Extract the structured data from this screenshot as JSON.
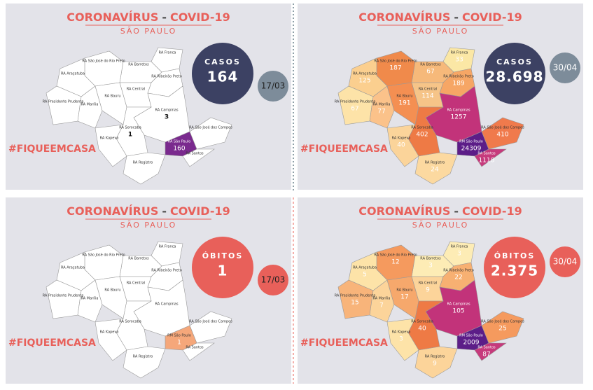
{
  "panels": [
    {
      "title_main": "CORONAVÍRUS",
      "title_sep": "-",
      "title_strong": "COVID-19",
      "subtitle": "SÃO PAULO",
      "badge_label": "CASOS",
      "badge_value": "164",
      "badge_color": "#3c4163",
      "date": "17/03",
      "date_color": "#7d8c9a",
      "hashtag": "#FIQUEEMCASA",
      "regions": [
        {
          "label": "RA Franca",
          "color": "#ffffff"
        },
        {
          "label": "RA Barretos",
          "color": "#ffffff"
        },
        {
          "label": "RA São José do Rio Preto",
          "color": "#ffffff"
        },
        {
          "label": "RA Ribeirão Preto",
          "color": "#ffffff"
        },
        {
          "label": "RA Araçatuba",
          "color": "#ffffff"
        },
        {
          "label": "RA Central",
          "color": "#ffffff"
        },
        {
          "label": "RA Presidente Prudente",
          "color": "#ffffff"
        },
        {
          "label": "RA Marília",
          "color": "#ffffff"
        },
        {
          "label": "RA Bauru",
          "color": "#ffffff"
        },
        {
          "label": "RA Campinas",
          "value": "3",
          "color": "#ffffff"
        },
        {
          "label": "RA São José dos Campos",
          "color": "#ffffff"
        },
        {
          "label": "RA Sorocaba",
          "value": "1",
          "color": "#ffffff"
        },
        {
          "label": "RA Kapeva",
          "color": "#ffffff"
        },
        {
          "label": "RA São Paulo",
          "value": "160",
          "color": "#7a2a8e"
        },
        {
          "label": "RA Santos",
          "color": "#ffffff"
        },
        {
          "label": "RA Registro",
          "color": "#ffffff"
        }
      ]
    },
    {
      "title_main": "CORONAVÍRUS",
      "title_sep": "-",
      "title_strong": "COVID-19",
      "subtitle": "SÃO PAULO",
      "badge_label": "CASOS",
      "badge_value": "28.698",
      "badge_color": "#3c4163",
      "date": "30/04",
      "date_color": "#7d8c9a",
      "hashtag": "#FIQUEEMCASA",
      "regions": [
        {
          "label": "RA Franca",
          "value": "33",
          "color": "#fbe7a5"
        },
        {
          "label": "RA Barretos",
          "value": "67",
          "color": "#f6b97a"
        },
        {
          "label": "RA São José do Rio Preto",
          "value": "187",
          "color": "#f08a4b"
        },
        {
          "label": "RA Ribeirão Preto",
          "value": "189",
          "color": "#f6a665"
        },
        {
          "label": "RA Araçatuba",
          "value": "125",
          "color": "#fbcf8f"
        },
        {
          "label": "RA Central",
          "value": "114",
          "color": "#f6c488"
        },
        {
          "label": "RA Presidente Prudente",
          "value": "67",
          "color": "#fde3a8"
        },
        {
          "label": "RA Marília",
          "value": "77",
          "color": "#fbc28a"
        },
        {
          "label": "RA Bauru",
          "value": "191",
          "color": "#f48f52"
        },
        {
          "label": "RA Campinas",
          "value": "1257",
          "color": "#c2337a"
        },
        {
          "label": "RA São José dos Campos",
          "value": "410",
          "color": "#f07a4c"
        },
        {
          "label": "RA Sorocaba",
          "value": "402",
          "color": "#ee7a45"
        },
        {
          "label": "RA Kapeva",
          "value": "40",
          "color": "#fbd49a"
        },
        {
          "label": "RM São Paulo",
          "value": "24309",
          "color": "#5c1d88"
        },
        {
          "label": "RA Santos",
          "value": "1118",
          "color": "#c63a7c"
        },
        {
          "label": "RA Registro",
          "value": "24",
          "color": "#fcd9a0"
        }
      ]
    },
    {
      "title_main": "CORONAVÍRUS",
      "title_sep": "-",
      "title_strong": "COVID-19",
      "subtitle": "SÃO PAULO",
      "badge_label": "ÓBITOS",
      "badge_value": "1",
      "badge_color": "#e8605a",
      "date": "17/03",
      "date_color": "#e8605a",
      "hashtag": "#FIQUEEMCASA",
      "regions": [
        {
          "label": "RA Franca",
          "color": "#ffffff"
        },
        {
          "label": "RA Barretos",
          "color": "#ffffff"
        },
        {
          "label": "RA São José do Rio Preto",
          "color": "#ffffff"
        },
        {
          "label": "RA Ribeirão Preto",
          "color": "#ffffff"
        },
        {
          "label": "RA Araçatuba",
          "color": "#ffffff"
        },
        {
          "label": "RA Central",
          "color": "#ffffff"
        },
        {
          "label": "RA Presidente Prudente",
          "color": "#ffffff"
        },
        {
          "label": "RA Marília",
          "color": "#ffffff"
        },
        {
          "label": "RA Bauru",
          "color": "#ffffff"
        },
        {
          "label": "RA Campinas",
          "color": "#ffffff"
        },
        {
          "label": "RA São José dos Campos",
          "color": "#ffffff"
        },
        {
          "label": "RA Sorocaba",
          "color": "#ffffff"
        },
        {
          "label": "RA Kapeva",
          "color": "#ffffff"
        },
        {
          "label": "RM São Paulo",
          "value": "1",
          "color": "#f5a77a"
        },
        {
          "label": "RA Santos",
          "color": "#ffffff"
        },
        {
          "label": "RA Registro",
          "color": "#ffffff"
        }
      ]
    },
    {
      "title_main": "CORONAVÍRUS",
      "title_sep": "-",
      "title_strong": "COVID-19",
      "subtitle": "SÃO PAULO",
      "badge_label": "ÓBITOS",
      "badge_value": "2.375",
      "badge_color": "#e8605a",
      "date": "30/04",
      "date_color": "#e8605a",
      "hashtag": "#FIQUEEMCASA",
      "regions": [
        {
          "label": "RA Franca",
          "value": "3",
          "color": "#fdecb5"
        },
        {
          "label": "RA Barretos",
          "value": "3",
          "color": "#fdecb5"
        },
        {
          "label": "RA São José do Rio Preto",
          "value": "12",
          "color": "#f59a5e"
        },
        {
          "label": "RA Ribeirão Preto",
          "value": "22",
          "color": "#f7b072"
        },
        {
          "label": "RA Araçatuba",
          "value": "5",
          "color": "#fde3a8"
        },
        {
          "label": "RA Central",
          "value": "9",
          "color": "#fcd49a"
        },
        {
          "label": "RA Presidente Prudente",
          "value": "15",
          "color": "#f8b47a"
        },
        {
          "label": "RA Marília",
          "value": "7",
          "color": "#fcd49a"
        },
        {
          "label": "RA Bauru",
          "value": "17",
          "color": "#f6a86c"
        },
        {
          "label": "RA Campinas",
          "value": "105",
          "color": "#c2337a"
        },
        {
          "label": "RA São José dos Campos",
          "value": "25",
          "color": "#f59a5e"
        },
        {
          "label": "RA Sorocaba",
          "value": "40",
          "color": "#ee7a45"
        },
        {
          "label": "RA Kapeva",
          "value": "3",
          "color": "#fde3a8"
        },
        {
          "label": "RM São Paulo",
          "value": "2009",
          "color": "#5c1d88"
        },
        {
          "label": "RA Santos",
          "value": "87",
          "color": "#c63a7c"
        },
        {
          "label": "RA Registro",
          "value": "9",
          "color": "#fcd49a"
        }
      ]
    }
  ]
}
